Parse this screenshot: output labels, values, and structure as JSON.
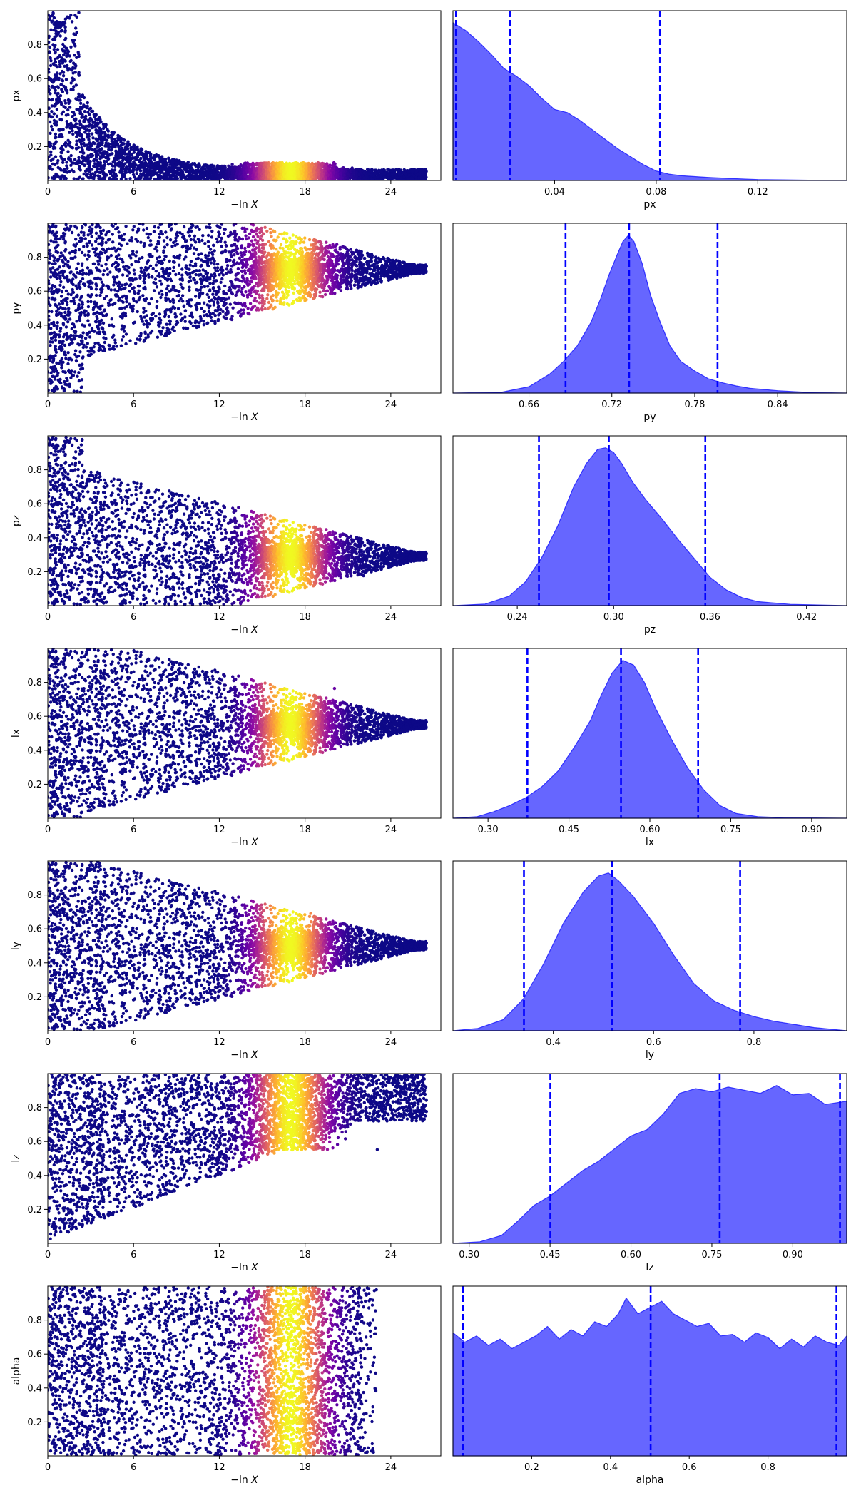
{
  "chart_data": {
    "type": "trace-plot",
    "colormap": "plasma",
    "kde_color": "#0000ff",
    "kde_fill_alpha": 0.6,
    "quantile_line_style": "dashed",
    "scatter_xlabel_text": "−ln",
    "scatter_xlabel_var": "X",
    "scatter_xticks": [
      0,
      6,
      12,
      18,
      24
    ],
    "scatter_xlim": [
      0,
      27.5
    ],
    "scatter_ylim": [
      0,
      1
    ],
    "scatter_yticks": [
      0.2,
      0.4,
      0.6,
      0.8
    ],
    "weight_peak": 17,
    "params": [
      {
        "name": "px",
        "trace_shape": "decay",
        "scatter_center": [
          0.35,
          0.1,
          0.02
        ],
        "scatter_spread": [
          0.55,
          0.18,
          0.05
        ],
        "kde_xlim": [
          0.0,
          0.155
        ],
        "kde_xticks": [
          0.04,
          0.08,
          0.12
        ],
        "kde_ticklabels": [
          "0.04",
          "0.08",
          "0.12"
        ],
        "kde_x": [
          0.0,
          0.005,
          0.01,
          0.015,
          0.02,
          0.025,
          0.03,
          0.035,
          0.04,
          0.045,
          0.05,
          0.055,
          0.06,
          0.065,
          0.07,
          0.075,
          0.08,
          0.085,
          0.09,
          0.1,
          0.11,
          0.12,
          0.13,
          0.14,
          0.155
        ],
        "kde_density": [
          1.0,
          0.95,
          0.88,
          0.8,
          0.71,
          0.66,
          0.6,
          0.52,
          0.45,
          0.43,
          0.38,
          0.32,
          0.26,
          0.2,
          0.15,
          0.1,
          0.06,
          0.04,
          0.03,
          0.02,
          0.012,
          0.006,
          0.004,
          0.002,
          0.001
        ],
        "quantiles": [
          0.0012,
          0.0225,
          0.0815
        ]
      },
      {
        "name": "py",
        "trace_shape": "converge",
        "trace_converge_to": 0.73,
        "kde_xlim": [
          0.605,
          0.89
        ],
        "kde_xticks": [
          0.66,
          0.72,
          0.78,
          0.84
        ],
        "kde_ticklabels": [
          "0.66",
          "0.72",
          "0.78",
          "0.84"
        ],
        "kde_x": [
          0.605,
          0.64,
          0.66,
          0.675,
          0.685,
          0.695,
          0.705,
          0.712,
          0.718,
          0.724,
          0.728,
          0.732,
          0.736,
          0.742,
          0.748,
          0.755,
          0.762,
          0.77,
          0.78,
          0.79,
          0.8,
          0.81,
          0.82,
          0.84,
          0.86,
          0.89
        ],
        "kde_density": [
          0.0,
          0.005,
          0.04,
          0.12,
          0.2,
          0.3,
          0.45,
          0.6,
          0.75,
          0.88,
          0.96,
          1.0,
          0.96,
          0.82,
          0.62,
          0.45,
          0.3,
          0.2,
          0.14,
          0.09,
          0.065,
          0.045,
          0.03,
          0.015,
          0.005,
          0.0
        ],
        "quantiles": [
          0.6865,
          0.7325,
          0.7965
        ]
      },
      {
        "name": "pz",
        "trace_shape": "converge",
        "trace_converge_to": 0.29,
        "kde_xlim": [
          0.2,
          0.445
        ],
        "kde_xticks": [
          0.24,
          0.3,
          0.36,
          0.42
        ],
        "kde_ticklabels": [
          "0.24",
          "0.30",
          "0.36",
          "0.42"
        ],
        "kde_x": [
          0.2,
          0.22,
          0.235,
          0.245,
          0.255,
          0.265,
          0.275,
          0.283,
          0.29,
          0.295,
          0.3,
          0.305,
          0.312,
          0.32,
          0.33,
          0.34,
          0.35,
          0.36,
          0.37,
          0.38,
          0.39,
          0.41,
          0.445
        ],
        "kde_density": [
          0.0,
          0.01,
          0.06,
          0.15,
          0.3,
          0.5,
          0.75,
          0.9,
          0.99,
          1.0,
          0.97,
          0.9,
          0.78,
          0.67,
          0.55,
          0.42,
          0.3,
          0.18,
          0.1,
          0.05,
          0.025,
          0.008,
          0.0
        ],
        "quantiles": [
          0.2535,
          0.297,
          0.357
        ]
      },
      {
        "name": "lx",
        "trace_shape": "converge",
        "trace_converge_to": 0.55,
        "kde_xlim": [
          0.235,
          0.965
        ],
        "kde_xticks": [
          0.3,
          0.45,
          0.6,
          0.75,
          0.9
        ],
        "kde_ticklabels": [
          "0.30",
          "0.45",
          "0.60",
          "0.75",
          "0.90"
        ],
        "kde_x": [
          0.235,
          0.28,
          0.31,
          0.34,
          0.37,
          0.4,
          0.43,
          0.46,
          0.49,
          0.51,
          0.53,
          0.55,
          0.57,
          0.59,
          0.61,
          0.64,
          0.67,
          0.7,
          0.73,
          0.76,
          0.8,
          0.85,
          0.965
        ],
        "kde_density": [
          0.0,
          0.01,
          0.04,
          0.08,
          0.13,
          0.2,
          0.3,
          0.45,
          0.62,
          0.78,
          0.92,
          1.0,
          0.97,
          0.86,
          0.7,
          0.5,
          0.32,
          0.18,
          0.08,
          0.03,
          0.01,
          0.003,
          0.0
        ],
        "quantiles": [
          0.373,
          0.5465,
          0.6895
        ]
      },
      {
        "name": "ly",
        "trace_shape": "converge",
        "trace_converge_to": 0.5,
        "kde_xlim": [
          0.2,
          0.985
        ],
        "kde_xticks": [
          0.4,
          0.6,
          0.8
        ],
        "kde_ticklabels": [
          "0.4",
          "0.6",
          "0.8"
        ],
        "kde_x": [
          0.2,
          0.25,
          0.3,
          0.34,
          0.38,
          0.42,
          0.46,
          0.49,
          0.51,
          0.53,
          0.56,
          0.6,
          0.64,
          0.68,
          0.72,
          0.76,
          0.8,
          0.84,
          0.88,
          0.92,
          0.985
        ],
        "kde_density": [
          0.0,
          0.015,
          0.07,
          0.2,
          0.42,
          0.68,
          0.88,
          0.98,
          1.0,
          0.95,
          0.85,
          0.68,
          0.48,
          0.3,
          0.19,
          0.13,
          0.09,
          0.06,
          0.04,
          0.02,
          0.0
        ],
        "quantiles": [
          0.3415,
          0.5175,
          0.7725
        ]
      },
      {
        "name": "lz",
        "trace_shape": "rising",
        "kde_xlim": [
          0.27,
          1.0
        ],
        "kde_xticks": [
          0.3,
          0.45,
          0.6,
          0.75,
          0.9
        ],
        "kde_ticklabels": [
          "0.30",
          "0.45",
          "0.60",
          "0.75",
          "0.90"
        ],
        "kde_x": [
          0.27,
          0.32,
          0.36,
          0.39,
          0.42,
          0.45,
          0.48,
          0.51,
          0.54,
          0.57,
          0.6,
          0.63,
          0.66,
          0.69,
          0.72,
          0.75,
          0.78,
          0.81,
          0.84,
          0.87,
          0.9,
          0.93,
          0.96,
          1.0
        ],
        "kde_density": [
          0.0,
          0.01,
          0.05,
          0.14,
          0.24,
          0.3,
          0.38,
          0.46,
          0.52,
          0.6,
          0.68,
          0.72,
          0.82,
          0.95,
          0.98,
          0.96,
          0.99,
          0.97,
          0.95,
          1.0,
          0.94,
          0.95,
          0.88,
          0.9
        ],
        "quantiles": [
          0.4505,
          0.7645,
          0.9875
        ]
      },
      {
        "name": "alpha",
        "trace_shape": "uniform",
        "kde_xlim": [
          0.0,
          1.0
        ],
        "kde_xticks": [
          0.2,
          0.4,
          0.6,
          0.8
        ],
        "kde_ticklabels": [
          "0.2",
          "0.4",
          "0.6",
          "0.8"
        ],
        "kde_x": [
          0.0,
          0.03,
          0.06,
          0.09,
          0.12,
          0.15,
          0.18,
          0.21,
          0.24,
          0.27,
          0.3,
          0.33,
          0.36,
          0.39,
          0.42,
          0.44,
          0.47,
          0.5,
          0.53,
          0.56,
          0.59,
          0.62,
          0.65,
          0.68,
          0.71,
          0.74,
          0.77,
          0.8,
          0.83,
          0.86,
          0.89,
          0.92,
          0.95,
          0.98,
          1.0
        ],
        "kde_density": [
          0.78,
          0.72,
          0.76,
          0.7,
          0.74,
          0.68,
          0.72,
          0.76,
          0.82,
          0.74,
          0.8,
          0.76,
          0.85,
          0.82,
          0.9,
          1.0,
          0.9,
          0.94,
          0.98,
          0.9,
          0.86,
          0.82,
          0.84,
          0.76,
          0.77,
          0.72,
          0.78,
          0.75,
          0.68,
          0.74,
          0.69,
          0.76,
          0.72,
          0.7,
          0.76
        ],
        "quantiles": [
          0.025,
          0.502,
          0.974
        ]
      }
    ]
  }
}
